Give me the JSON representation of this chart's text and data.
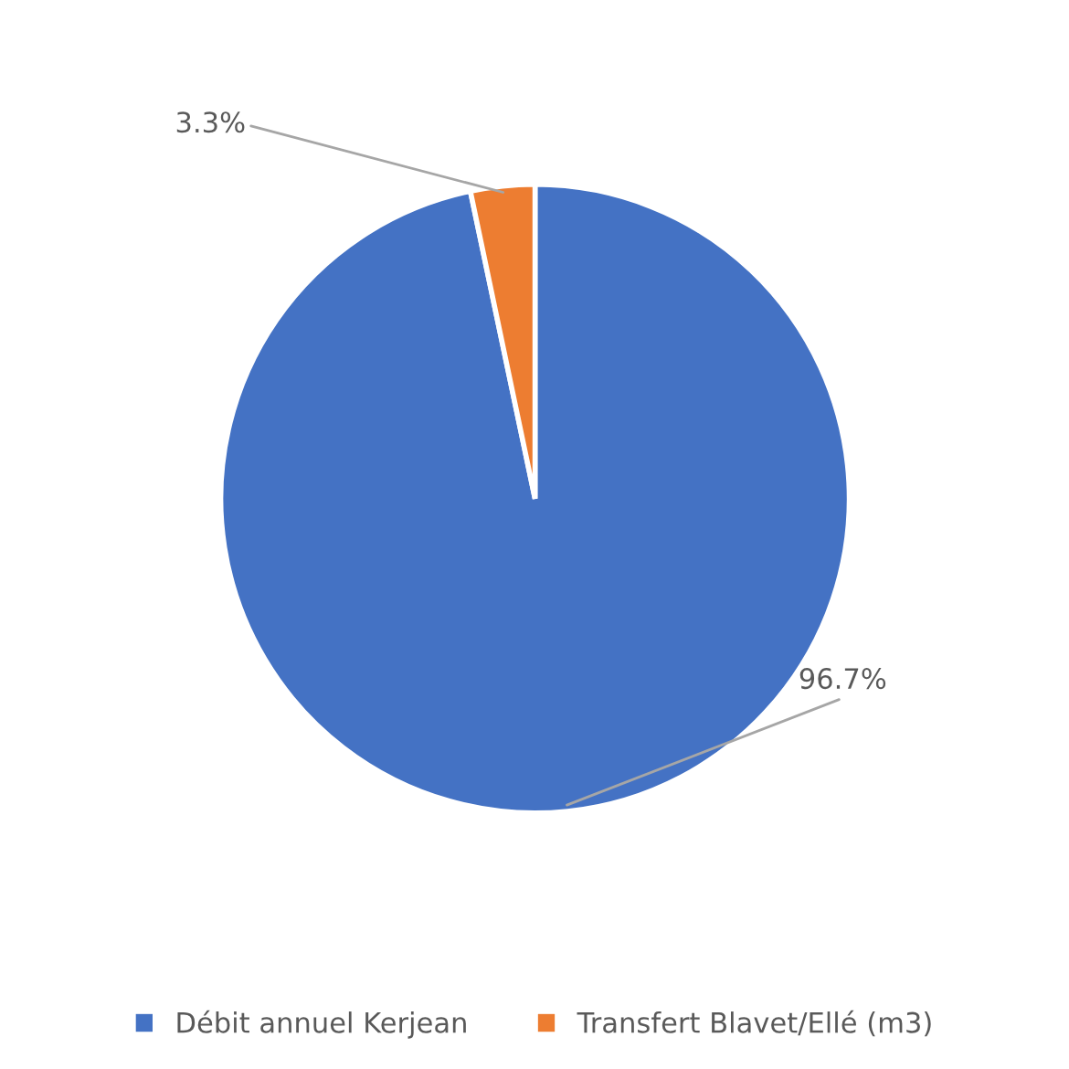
{
  "chart_data": {
    "type": "pie",
    "categories": [
      "Débit annuel Kerjean",
      "Transfert Blavet/Ellé (m3)"
    ],
    "values": [
      96.7,
      3.3
    ],
    "colors": [
      "#4472c4",
      "#ed7d31"
    ],
    "value_labels": [
      "96.7%",
      "3.3%"
    ],
    "legend": "bottom"
  }
}
